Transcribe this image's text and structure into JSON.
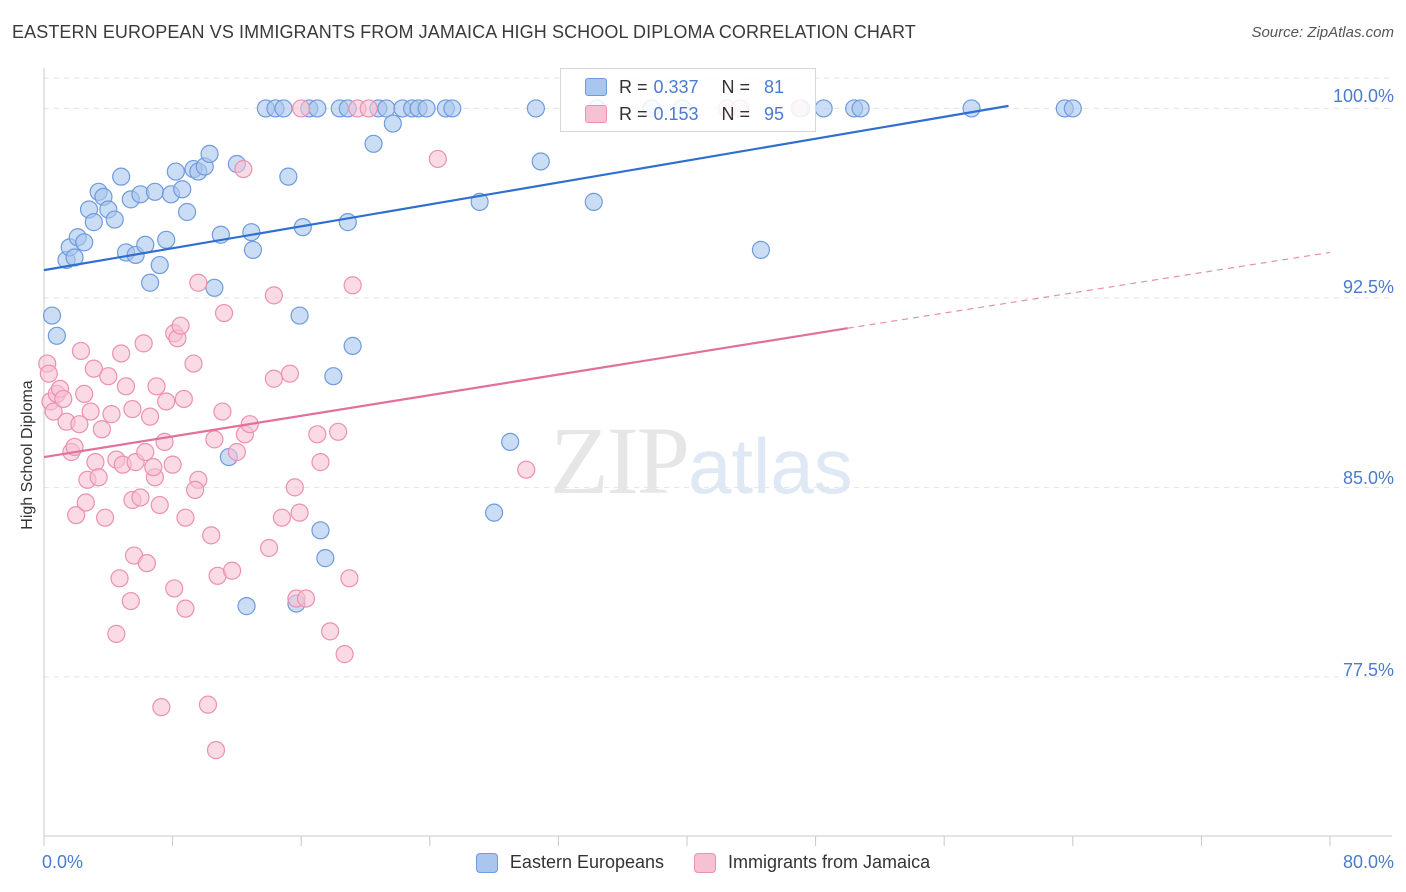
{
  "header": {
    "title": "EASTERN EUROPEAN VS IMMIGRANTS FROM JAMAICA HIGH SCHOOL DIPLOMA CORRELATION CHART",
    "source": "Source: ZipAtlas.com"
  },
  "watermark": {
    "zip": "ZIP",
    "atlas": "atlas"
  },
  "legend": {
    "rows": [
      {
        "r_label": "R =",
        "r_value": "0.337",
        "n_label": "N =",
        "n_value": "81"
      },
      {
        "r_label": "R =",
        "r_value": "0.153",
        "n_label": "N =",
        "n_value": "95"
      }
    ]
  },
  "bottom_legend": {
    "series1": "Eastern Europeans",
    "series2": "Immigrants from Jamaica"
  },
  "colors": {
    "blue_fill": "#a9c6ee",
    "blue_stroke": "#6f9bdc",
    "blue_line": "#2f6fcf",
    "pink_fill": "#f6c1d3",
    "pink_stroke": "#ec90b1",
    "pink_line": "#e2709c",
    "axis_label": "#4a7bd0",
    "grid": "#e3e3e3"
  },
  "chart_data": {
    "type": "scatter",
    "title": "EASTERN EUROPEAN VS IMMIGRANTS FROM JAMAICA HIGH SCHOOL DIPLOMA CORRELATION CHART",
    "xlabel": "",
    "ylabel": "High School Diploma",
    "xlim": [
      0,
      80
    ],
    "ylim": [
      71.2,
      101.6
    ],
    "x_tick_labels": [
      "0.0%",
      "80.0%"
    ],
    "y_ticks": [
      77.5,
      85.0,
      92.5,
      100.0
    ],
    "y_tick_labels": [
      "77.5%",
      "85.0%",
      "92.5%",
      "100.0%"
    ],
    "grid": "horizontal dashed",
    "series": [
      {
        "name": "Eastern Europeans",
        "R": 0.337,
        "N": 81,
        "trend": {
          "x": [
            0,
            60
          ],
          "y": [
            93.6,
            100.1
          ],
          "dashed_to": null
        },
        "points": [
          [
            0.5,
            91.8
          ],
          [
            0.8,
            91.0
          ],
          [
            1.4,
            94.0
          ],
          [
            1.6,
            94.5
          ],
          [
            1.9,
            94.1
          ],
          [
            2.1,
            94.9
          ],
          [
            2.5,
            94.7
          ],
          [
            2.8,
            96.0
          ],
          [
            3.1,
            95.5
          ],
          [
            3.4,
            96.7
          ],
          [
            3.7,
            96.5
          ],
          [
            4.0,
            96.0
          ],
          [
            4.4,
            95.6
          ],
          [
            4.8,
            97.3
          ],
          [
            5.1,
            94.3
          ],
          [
            5.4,
            96.4
          ],
          [
            5.7,
            94.2
          ],
          [
            6.0,
            96.6
          ],
          [
            6.3,
            94.6
          ],
          [
            6.6,
            93.1
          ],
          [
            6.9,
            96.7
          ],
          [
            7.2,
            93.8
          ],
          [
            7.6,
            94.8
          ],
          [
            7.9,
            96.6
          ],
          [
            8.2,
            97.5
          ],
          [
            8.6,
            96.8
          ],
          [
            8.9,
            95.9
          ],
          [
            9.3,
            97.6
          ],
          [
            9.6,
            97.5
          ],
          [
            10.0,
            97.7
          ],
          [
            10.3,
            98.2
          ],
          [
            10.6,
            92.9
          ],
          [
            11.0,
            95.0
          ],
          [
            11.5,
            86.2
          ],
          [
            12.0,
            97.8
          ],
          [
            12.6,
            80.3
          ],
          [
            12.9,
            95.1
          ],
          [
            13.0,
            94.4
          ],
          [
            13.8,
            100.0
          ],
          [
            14.4,
            100.0
          ],
          [
            14.9,
            100.0
          ],
          [
            15.2,
            97.3
          ],
          [
            15.7,
            80.4
          ],
          [
            15.9,
            91.8
          ],
          [
            16.1,
            95.3
          ],
          [
            16.5,
            100.0
          ],
          [
            17.0,
            100.0
          ],
          [
            17.2,
            83.3
          ],
          [
            17.5,
            82.2
          ],
          [
            18.0,
            89.4
          ],
          [
            18.4,
            100.0
          ],
          [
            18.9,
            100.0
          ],
          [
            18.9,
            95.5
          ],
          [
            19.2,
            90.6
          ],
          [
            20.5,
            98.6
          ],
          [
            20.8,
            100.0
          ],
          [
            21.3,
            100.0
          ],
          [
            21.7,
            99.4
          ],
          [
            22.3,
            100.0
          ],
          [
            22.9,
            100.0
          ],
          [
            23.3,
            100.0
          ],
          [
            23.8,
            100.0
          ],
          [
            25.0,
            100.0
          ],
          [
            25.4,
            100.0
          ],
          [
            27.1,
            96.3
          ],
          [
            28.0,
            84.0
          ],
          [
            29.0,
            86.8
          ],
          [
            30.6,
            100.0
          ],
          [
            30.9,
            97.9
          ],
          [
            34.2,
            96.3
          ],
          [
            34.4,
            100.0
          ],
          [
            37.8,
            100.0
          ],
          [
            39.7,
            100.0
          ],
          [
            44.6,
            94.4
          ],
          [
            47.1,
            100.0
          ],
          [
            48.5,
            100.0
          ],
          [
            50.4,
            100.0
          ],
          [
            50.8,
            100.0
          ],
          [
            57.7,
            100.0
          ],
          [
            63.5,
            100.0
          ],
          [
            64.0,
            100.0
          ]
        ]
      },
      {
        "name": "Immigrants from Jamaica",
        "R": 0.153,
        "N": 95,
        "trend": {
          "x": [
            0,
            50
          ],
          "y": [
            86.2,
            91.3
          ],
          "dashed_to": [
            80,
            94.3
          ]
        },
        "points": [
          [
            0.2,
            89.9
          ],
          [
            0.3,
            89.5
          ],
          [
            0.4,
            88.4
          ],
          [
            0.6,
            88.0
          ],
          [
            0.8,
            88.7
          ],
          [
            1.0,
            88.9
          ],
          [
            1.2,
            88.5
          ],
          [
            1.4,
            87.6
          ],
          [
            1.7,
            86.4
          ],
          [
            1.9,
            86.6
          ],
          [
            2.0,
            83.9
          ],
          [
            2.2,
            87.5
          ],
          [
            2.3,
            90.4
          ],
          [
            2.5,
            88.7
          ],
          [
            2.7,
            85.3
          ],
          [
            2.9,
            88.0
          ],
          [
            3.1,
            89.7
          ],
          [
            3.2,
            86.0
          ],
          [
            3.4,
            85.4
          ],
          [
            3.6,
            87.3
          ],
          [
            3.8,
            83.8
          ],
          [
            4.0,
            89.4
          ],
          [
            4.2,
            87.9
          ],
          [
            4.5,
            79.2
          ],
          [
            4.5,
            86.1
          ],
          [
            4.7,
            81.4
          ],
          [
            4.8,
            90.3
          ],
          [
            4.9,
            85.9
          ],
          [
            5.1,
            89.0
          ],
          [
            5.4,
            80.5
          ],
          [
            5.5,
            84.5
          ],
          [
            5.5,
            88.1
          ],
          [
            5.6,
            82.3
          ],
          [
            5.7,
            86.0
          ],
          [
            6.0,
            84.6
          ],
          [
            6.2,
            90.7
          ],
          [
            6.3,
            86.4
          ],
          [
            6.4,
            82.0
          ],
          [
            6.6,
            87.8
          ],
          [
            6.9,
            85.4
          ],
          [
            7.0,
            89.0
          ],
          [
            7.2,
            84.3
          ],
          [
            7.3,
            76.3
          ],
          [
            7.5,
            86.8
          ],
          [
            7.6,
            88.4
          ],
          [
            8.0,
            85.9
          ],
          [
            8.1,
            81.0
          ],
          [
            8.1,
            91.1
          ],
          [
            8.3,
            90.9
          ],
          [
            8.5,
            91.4
          ],
          [
            8.7,
            88.5
          ],
          [
            8.8,
            80.2
          ],
          [
            8.8,
            83.8
          ],
          [
            9.3,
            89.9
          ],
          [
            9.6,
            85.3
          ],
          [
            9.6,
            93.1
          ],
          [
            10.2,
            76.4
          ],
          [
            10.4,
            83.1
          ],
          [
            10.6,
            86.9
          ],
          [
            10.7,
            74.6
          ],
          [
            10.8,
            81.5
          ],
          [
            11.1,
            88.0
          ],
          [
            11.2,
            91.9
          ],
          [
            11.7,
            81.7
          ],
          [
            12.0,
            86.4
          ],
          [
            12.4,
            97.6
          ],
          [
            12.5,
            87.1
          ],
          [
            12.8,
            87.5
          ],
          [
            14.0,
            82.6
          ],
          [
            14.3,
            89.3
          ],
          [
            14.3,
            92.6
          ],
          [
            14.8,
            83.8
          ],
          [
            15.3,
            89.5
          ],
          [
            15.6,
            85.0
          ],
          [
            15.7,
            80.6
          ],
          [
            15.9,
            84.0
          ],
          [
            16.0,
            100.0
          ],
          [
            16.3,
            80.6
          ],
          [
            17.0,
            87.1
          ],
          [
            17.2,
            86.0
          ],
          [
            17.8,
            79.3
          ],
          [
            18.3,
            87.2
          ],
          [
            18.7,
            78.4
          ],
          [
            19.0,
            81.4
          ],
          [
            19.2,
            93.0
          ],
          [
            19.5,
            100.0
          ],
          [
            20.2,
            100.0
          ],
          [
            24.5,
            98.0
          ],
          [
            30.0,
            85.7
          ],
          [
            42.5,
            100.0
          ],
          [
            43.3,
            100.0
          ],
          [
            47.0,
            100.0
          ],
          [
            2.6,
            84.4
          ],
          [
            6.8,
            85.8
          ],
          [
            9.4,
            84.9
          ]
        ]
      }
    ]
  }
}
